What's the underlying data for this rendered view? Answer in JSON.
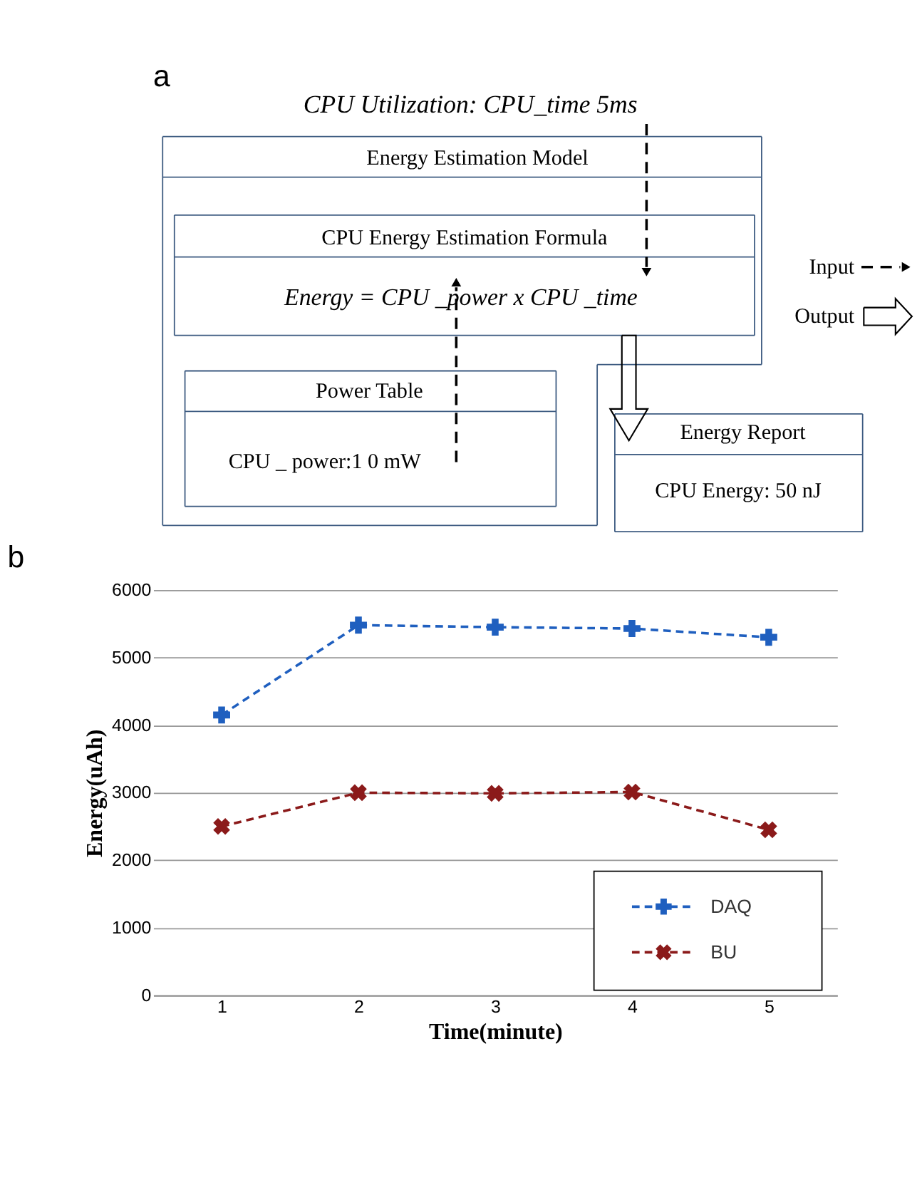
{
  "chart_data": [
    {
      "type": "other",
      "title": "a",
      "annotations": [
        "CPU Utilization: CPU_time 5ms",
        "Energy Estimation Model",
        "CPU Energy Estimation Formula",
        "Energy  =  CPU _power  x  CPU _time",
        "Power Table",
        "CPU _ power:1 0 mW",
        "Energy Report",
        "CPU Energy: 50 nJ",
        "Input",
        "Output"
      ]
    },
    {
      "type": "line",
      "title": "b",
      "xlabel": "Time(minute)",
      "ylabel": "Energy(uAh)",
      "categories": [
        "1",
        "2",
        "3",
        "4",
        "5"
      ],
      "series": [
        {
          "name": "DAQ",
          "color": "#1f5fbf",
          "marker": "cross",
          "values": [
            4150,
            5480,
            5450,
            5430,
            5300
          ]
        },
        {
          "name": "BU",
          "color": "#8b1a1a",
          "marker": "cross",
          "values": [
            2500,
            3000,
            2990,
            3010,
            2450
          ]
        }
      ],
      "ylim": [
        0,
        6000
      ],
      "yticks": [
        0,
        {
          "value": 1000,
          "label": "1000"
        },
        {
          "value": 2000,
          "label": "2000"
        },
        {
          "value": 3000,
          "label": "3000"
        },
        {
          "value": 4000,
          "label": "4000"
        },
        {
          "value": 5000,
          "label": "5000"
        },
        {
          "value": 6000,
          "label": "6000"
        }
      ],
      "grid": "y",
      "legend": "bottom right",
      "line_style": "dashed"
    }
  ]
}
